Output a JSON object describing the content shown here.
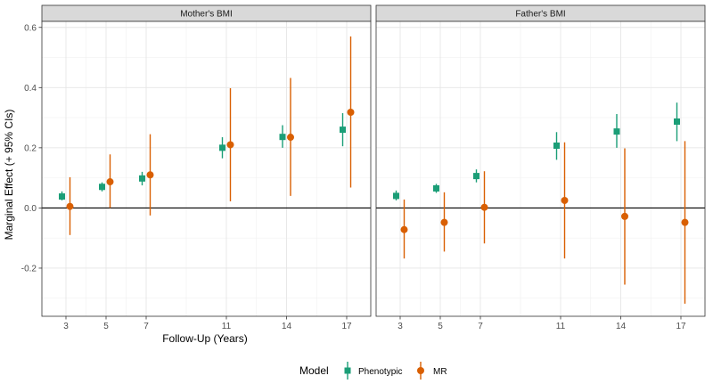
{
  "chart_data": {
    "type": "scatter",
    "subtype": "point-range",
    "xlabel": "Follow-Up (Years)",
    "ylabel": "Marginal Effect (+ 95% CIs)",
    "x_ticks": [
      3,
      5,
      7,
      11,
      14,
      17
    ],
    "y_ticks": [
      -0.2,
      0.0,
      0.2,
      0.4,
      0.6
    ],
    "y_tick_labels": [
      "-0.2",
      "0.0",
      "0.2",
      "0.4",
      "0.6"
    ],
    "ylim": [
      -0.36,
      0.62
    ],
    "xlim": [
      1.8,
      18.2
    ],
    "zero_line": 0,
    "legend": {
      "title": "Model",
      "entries": [
        {
          "name": "Phenotypic",
          "color": "#1b9e77",
          "marker": "square"
        },
        {
          "name": "MR",
          "color": "#d95f02",
          "marker": "circle"
        }
      ]
    },
    "panels": [
      {
        "title": "Mother's BMI",
        "series": [
          {
            "name": "Phenotypic",
            "x": [
              3,
              5,
              7,
              11,
              14,
              17
            ],
            "values": [
              0.038,
              0.07,
              0.098,
              0.2,
              0.236,
              0.26
            ],
            "lower": [
              0.025,
              0.055,
              0.075,
              0.165,
              0.2,
              0.205
            ],
            "upper": [
              0.055,
              0.085,
              0.12,
              0.235,
              0.275,
              0.315
            ]
          },
          {
            "name": "MR",
            "x": [
              3,
              5,
              7,
              11,
              14,
              17
            ],
            "values": [
              0.005,
              0.087,
              0.11,
              0.21,
              0.235,
              0.318
            ],
            "lower": [
              -0.09,
              0.0,
              -0.025,
              0.022,
              0.04,
              0.068
            ],
            "upper": [
              0.102,
              0.178,
              0.245,
              0.398,
              0.432,
              0.57
            ]
          }
        ]
      },
      {
        "title": "Father's BMI",
        "series": [
          {
            "name": "Phenotypic",
            "x": [
              3,
              5,
              7,
              11,
              14,
              17
            ],
            "values": [
              0.04,
              0.065,
              0.106,
              0.207,
              0.254,
              0.287
            ],
            "lower": [
              0.025,
              0.05,
              0.085,
              0.16,
              0.2,
              0.222
            ],
            "upper": [
              0.058,
              0.08,
              0.128,
              0.252,
              0.312,
              0.35
            ]
          },
          {
            "name": "MR",
            "x": [
              3,
              5,
              7,
              11,
              14,
              17
            ],
            "values": [
              -0.072,
              -0.048,
              0.002,
              0.025,
              -0.028,
              -0.048
            ],
            "lower": [
              -0.168,
              -0.145,
              -0.118,
              -0.168,
              -0.255,
              -0.318
            ],
            "upper": [
              0.028,
              0.052,
              0.122,
              0.218,
              0.198,
              0.222
            ]
          }
        ]
      }
    ]
  }
}
